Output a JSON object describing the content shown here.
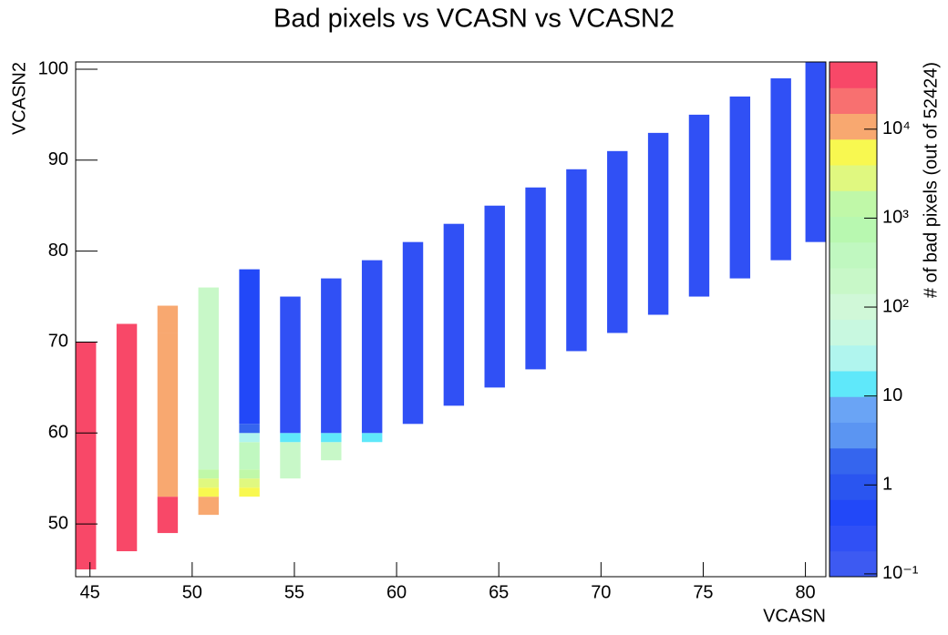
{
  "chart_data": {
    "type": "heatmap",
    "title": "Bad pixels vs VCASN vs VCASN2",
    "x_label": "VCASN",
    "y_label": "VCASN2",
    "z_label": "# of bad pixels (out of 52424)",
    "xlim": [
      44.3,
      81
    ],
    "ylim": [
      44.2,
      100.8
    ],
    "zlim": [
      0.093,
      57000
    ],
    "z_log": true,
    "xticks": [
      45,
      50,
      55,
      60,
      65,
      70,
      75,
      80
    ],
    "yticks": [
      50,
      60,
      70,
      80,
      90,
      100
    ],
    "zticks": [
      {
        "value": 0.1,
        "label": "10⁻¹"
      },
      1,
      10,
      {
        "value": 100,
        "label": "10²"
      },
      {
        "value": 1000,
        "label": "10³"
      },
      {
        "value": 10000,
        "label": "10⁴"
      }
    ],
    "palette": [
      "#3d5af2",
      "#3050f5",
      "#2248f8",
      "#2a55f0",
      "#3565ee",
      "#5b95f2",
      "#6aa4f5",
      "#5fe8fa",
      "#b0f5ee",
      "#c8f8e0",
      "#d0f8d8",
      "#c8f8c8",
      "#c0f8c0",
      "#b8f8b0",
      "#c0f8a8",
      "#e0f880",
      "#f8f850",
      "#f8a870",
      "#f87070",
      "#f84868"
    ],
    "cells": [
      {
        "x": [
          44.3,
          45.3
        ],
        "y": [
          45,
          70
        ],
        "z": 50000
      },
      {
        "x": [
          46.3,
          47.3
        ],
        "y": [
          47,
          72
        ],
        "z": 40000
      },
      {
        "x": [
          48.3,
          49.3
        ],
        "y": [
          49,
          53
        ],
        "z": 30000
      },
      {
        "x": [
          48.3,
          49.3
        ],
        "y": [
          53,
          71
        ],
        "z": 15000
      },
      {
        "x": [
          48.3,
          49.3
        ],
        "y": [
          71,
          72
        ],
        "z": 8000
      },
      {
        "x": [
          48.3,
          49.3
        ],
        "y": [
          72,
          74
        ],
        "z": 15000
      },
      {
        "x": [
          50.3,
          51.3
        ],
        "y": [
          51,
          53
        ],
        "z": 15000
      },
      {
        "x": [
          50.3,
          51.3
        ],
        "y": [
          53,
          54
        ],
        "z": 6000
      },
      {
        "x": [
          50.3,
          51.3
        ],
        "y": [
          54,
          55
        ],
        "z": 3000
      },
      {
        "x": [
          50.3,
          51.3
        ],
        "y": [
          55,
          56
        ],
        "z": 1500
      },
      {
        "x": [
          50.3,
          51.3
        ],
        "y": [
          56,
          76
        ],
        "z": 200
      },
      {
        "x": [
          52.3,
          53.3
        ],
        "y": [
          53,
          54
        ],
        "z": 6000
      },
      {
        "x": [
          52.3,
          53.3
        ],
        "y": [
          54,
          55
        ],
        "z": 3000
      },
      {
        "x": [
          52.3,
          53.3
        ],
        "y": [
          55,
          56
        ],
        "z": 1500
      },
      {
        "x": [
          52.3,
          53.3
        ],
        "y": [
          56,
          59
        ],
        "z": 300
      },
      {
        "x": [
          52.3,
          53.3
        ],
        "y": [
          59,
          60
        ],
        "z": 20
      },
      {
        "x": [
          52.3,
          53.3
        ],
        "y": [
          60,
          61
        ],
        "z": 2
      },
      {
        "x": [
          52.3,
          53.3
        ],
        "y": [
          61,
          78
        ],
        "z": 0.5
      },
      {
        "x": [
          54.3,
          55.3
        ],
        "y": [
          55,
          59
        ],
        "z": 200
      },
      {
        "x": [
          54.3,
          55.3
        ],
        "y": [
          59,
          60
        ],
        "z": 15
      },
      {
        "x": [
          54.3,
          55.3
        ],
        "y": [
          60,
          75
        ],
        "z": 0.3
      },
      {
        "x": [
          56.3,
          57.3
        ],
        "y": [
          57,
          59
        ],
        "z": 150
      },
      {
        "x": [
          56.3,
          57.3
        ],
        "y": [
          59,
          60
        ],
        "z": 15
      },
      {
        "x": [
          56.3,
          57.3
        ],
        "y": [
          60,
          77
        ],
        "z": 0.3
      },
      {
        "x": [
          58.3,
          59.3
        ],
        "y": [
          59,
          60
        ],
        "z": 12
      },
      {
        "x": [
          58.3,
          59.3
        ],
        "y": [
          60,
          79
        ],
        "z": 0.3
      },
      {
        "x": [
          60.3,
          61.3
        ],
        "y": [
          61,
          81
        ],
        "z": 0.3
      },
      {
        "x": [
          62.3,
          63.3
        ],
        "y": [
          63,
          83
        ],
        "z": 0.3
      },
      {
        "x": [
          64.3,
          65.3
        ],
        "y": [
          65,
          85
        ],
        "z": 0.3
      },
      {
        "x": [
          66.3,
          67.3
        ],
        "y": [
          67,
          87
        ],
        "z": 0.3
      },
      {
        "x": [
          68.3,
          69.3
        ],
        "y": [
          69,
          89
        ],
        "z": 0.3
      },
      {
        "x": [
          70.3,
          71.3
        ],
        "y": [
          71,
          91
        ],
        "z": 0.3
      },
      {
        "x": [
          72.3,
          73.3
        ],
        "y": [
          73,
          93
        ],
        "z": 0.3
      },
      {
        "x": [
          74.3,
          75.3
        ],
        "y": [
          75,
          95
        ],
        "z": 0.3
      },
      {
        "x": [
          76.3,
          77.3
        ],
        "y": [
          77,
          97
        ],
        "z": 0.3
      },
      {
        "x": [
          78.3,
          79.3
        ],
        "y": [
          79,
          99
        ],
        "z": 0.3
      },
      {
        "x": [
          80.0,
          81.0
        ],
        "y": [
          81,
          101
        ],
        "z": 0.3
      }
    ]
  }
}
